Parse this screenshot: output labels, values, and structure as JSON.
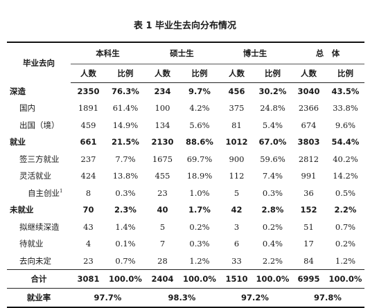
{
  "title": "表 1 毕业生去向分布情况",
  "header": {
    "row_label": "毕业去向",
    "groups": [
      "本科生",
      "硕士生",
      "博士生",
      "总　体"
    ],
    "sub": [
      "人数",
      "比例"
    ]
  },
  "rows": [
    {
      "label": "深造",
      "level": 0,
      "bold": true,
      "cells": [
        "2350",
        "76.3%",
        "234",
        "9.7%",
        "456",
        "30.2%",
        "3040",
        "43.5%"
      ]
    },
    {
      "label": "国内",
      "level": 1,
      "bold": false,
      "cells": [
        "1891",
        "61.4%",
        "100",
        "4.2%",
        "375",
        "24.8%",
        "2366",
        "33.8%"
      ]
    },
    {
      "label": "出国（境）",
      "level": 1,
      "bold": false,
      "cells": [
        "459",
        "14.9%",
        "134",
        "5.6%",
        "81",
        "5.4%",
        "674",
        "9.6%"
      ]
    },
    {
      "label": "就业",
      "level": 0,
      "bold": true,
      "cells": [
        "661",
        "21.5%",
        "2130",
        "88.6%",
        "1012",
        "67.0%",
        "3803",
        "54.4%"
      ]
    },
    {
      "label": "签三方就业",
      "level": 1,
      "bold": false,
      "cells": [
        "237",
        "7.7%",
        "1675",
        "69.7%",
        "900",
        "59.6%",
        "2812",
        "40.2%"
      ]
    },
    {
      "label": "灵活就业",
      "level": 1,
      "bold": false,
      "cells": [
        "424",
        "13.8%",
        "455",
        "18.9%",
        "112",
        "7.4%",
        "991",
        "14.2%"
      ]
    },
    {
      "label": "自主创业",
      "sup": "1",
      "level": 2,
      "bold": false,
      "cells": [
        "8",
        "0.3%",
        "23",
        "1.0%",
        "5",
        "0.3%",
        "36",
        "0.5%"
      ]
    },
    {
      "label": "未就业",
      "level": 0,
      "bold": true,
      "cells": [
        "70",
        "2.3%",
        "40",
        "1.7%",
        "42",
        "2.8%",
        "152",
        "2.2%"
      ]
    },
    {
      "label": "拟继续深造",
      "level": 1,
      "bold": false,
      "cells": [
        "43",
        "1.4%",
        "5",
        "0.2%",
        "3",
        "0.2%",
        "51",
        "0.7%"
      ]
    },
    {
      "label": "待就业",
      "level": 1,
      "bold": false,
      "cells": [
        "4",
        "0.1%",
        "7",
        "0.3%",
        "6",
        "0.4%",
        "17",
        "0.2%"
      ]
    },
    {
      "label": "去向未定",
      "level": 1,
      "bold": false,
      "cells": [
        "23",
        "0.7%",
        "28",
        "1.2%",
        "33",
        "2.2%",
        "84",
        "1.2%"
      ]
    }
  ],
  "total": {
    "label": "合计",
    "cells": [
      "3081",
      "100.0%",
      "2404",
      "100.0%",
      "1510",
      "100.0%",
      "6995",
      "100.0%"
    ]
  },
  "rate": {
    "label": "就业率",
    "cells": [
      "97.7%",
      "98.3%",
      "97.2%",
      "97.8%"
    ]
  }
}
